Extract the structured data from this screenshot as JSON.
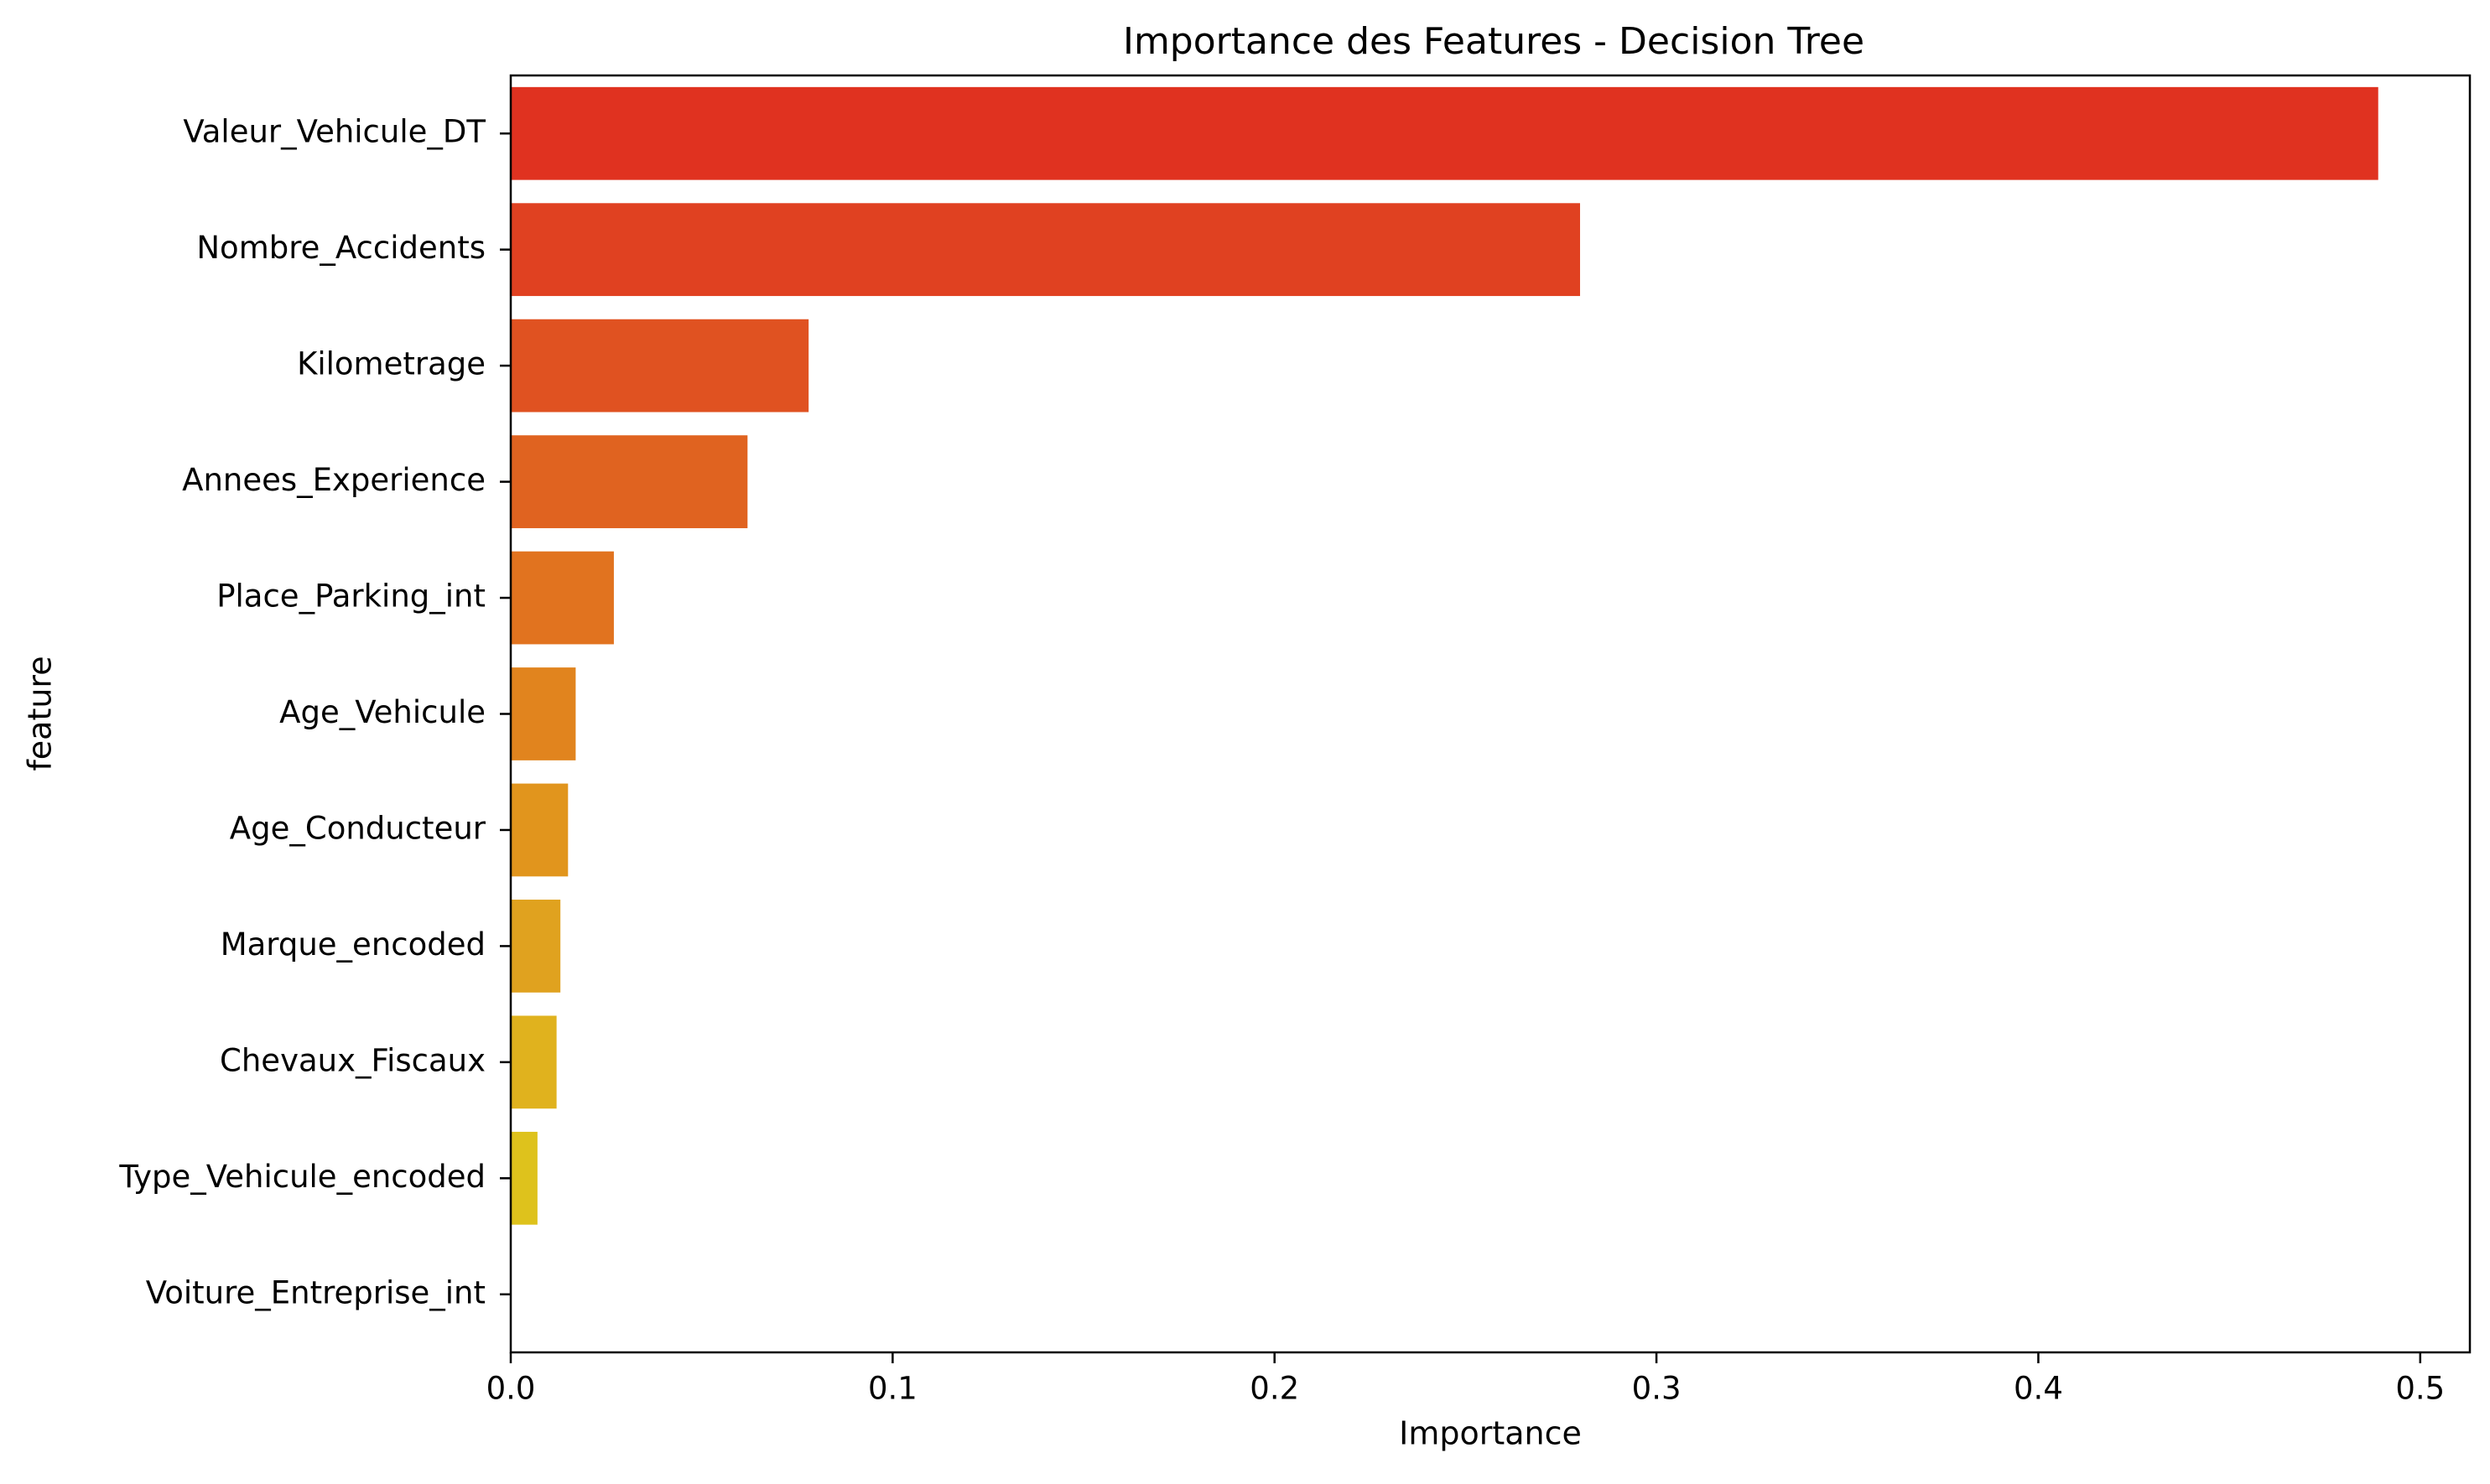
{
  "chart_data": {
    "type": "bar",
    "orientation": "horizontal",
    "title": "Importance des Features - Decision Tree",
    "xlabel": "Importance",
    "ylabel": "feature",
    "xlim": [
      0,
      0.513
    ],
    "x_ticks": [
      0.0,
      0.1,
      0.2,
      0.3,
      0.4,
      0.5
    ],
    "x_tick_labels": [
      "0.0",
      "0.1",
      "0.2",
      "0.3",
      "0.4",
      "0.5"
    ],
    "grid": false,
    "categories": [
      "Valeur_Vehicule_DT",
      "Nombre_Accidents",
      "Kilometrage",
      "Annees_Experience",
      "Place_Parking_int",
      "Age_Vehicule",
      "Age_Conducteur",
      "Marque_encoded",
      "Chevaux_Fiscaux",
      "Type_Vehicule_encoded",
      "Voiture_Entreprise_int"
    ],
    "values": [
      0.489,
      0.28,
      0.078,
      0.062,
      0.027,
      0.017,
      0.015,
      0.013,
      0.012,
      0.007,
      0.0
    ],
    "colors": [
      "#e03220",
      "#e04121",
      "#e05221",
      "#e06320",
      "#e1731f",
      "#e1841e",
      "#e1951d",
      "#e0a21f",
      "#e0b21e",
      "#dec21c",
      "#dcd51b"
    ]
  }
}
